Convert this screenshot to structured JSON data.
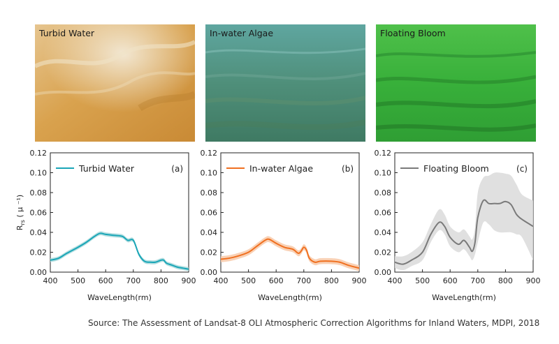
{
  "photos": [
    {
      "label": "Turbid Water"
    },
    {
      "label": "In-water Algae"
    },
    {
      "label": "Floating Bloom"
    }
  ],
  "source_text": "Source: The Assessment of Landsat-8 OLI Atmospheric Correction Algorithms for Inland Waters, MDPI, 2018",
  "colors": {
    "turbid": "#1aa6b7",
    "algae": "#f07020",
    "bloom": "#7a7a7a"
  },
  "chart_data": [
    {
      "type": "line",
      "panel_label": "(a)",
      "ylabel": "Rrs (μ⁻¹)",
      "ylabel_main": "R",
      "ylabel_sub": "rs",
      "ylabel_unit": " ( μ ⁻¹)",
      "xlabel": "WaveLength(rm)",
      "xlim": [
        400,
        900
      ],
      "ylim": [
        0,
        0.12
      ],
      "xticks": [
        "400",
        "500",
        "600",
        "700",
        "800",
        "900"
      ],
      "yticks": [
        "0.00",
        "0.02",
        "0.04",
        "0.06",
        "0.08",
        "0.10",
        "0.12"
      ],
      "legend_placement": "top-left",
      "series": [
        {
          "name": "Turbid Water",
          "color": "#1aa6b7",
          "band_color": "#a9d9dc",
          "x": [
            400,
            430,
            460,
            500,
            530,
            560,
            580,
            600,
            630,
            660,
            680,
            700,
            720,
            740,
            760,
            780,
            800,
            810,
            820,
            840,
            860,
            880,
            900
          ],
          "y": [
            0.012,
            0.014,
            0.019,
            0.025,
            0.03,
            0.036,
            0.039,
            0.038,
            0.037,
            0.036,
            0.032,
            0.032,
            0.018,
            0.011,
            0.01,
            0.01,
            0.012,
            0.012,
            0.009,
            0.007,
            0.005,
            0.004,
            0.003
          ],
          "band": 0.002
        }
      ]
    },
    {
      "type": "line",
      "panel_label": "(b)",
      "ylabel": "",
      "xlabel": "WaveLength(rm)",
      "xlim": [
        400,
        900
      ],
      "ylim": [
        0,
        0.12
      ],
      "xticks": [
        "400",
        "500",
        "600",
        "700",
        "800",
        "900"
      ],
      "yticks": [
        "0.00",
        "0.02",
        "0.04",
        "0.06",
        "0.08",
        "0.10",
        "0.12"
      ],
      "legend_placement": "top-left",
      "series": [
        {
          "name": "In-water Algae",
          "color": "#f07020",
          "band_color": "#f8c9a8",
          "x": [
            400,
            430,
            460,
            500,
            530,
            560,
            575,
            600,
            630,
            660,
            680,
            690,
            700,
            710,
            720,
            740,
            760,
            800,
            830,
            860,
            900
          ],
          "y": [
            0.013,
            0.014,
            0.016,
            0.02,
            0.026,
            0.032,
            0.033,
            0.029,
            0.025,
            0.023,
            0.019,
            0.021,
            0.025,
            0.022,
            0.014,
            0.01,
            0.011,
            0.011,
            0.01,
            0.007,
            0.004
          ],
          "band": 0.003
        }
      ]
    },
    {
      "type": "line",
      "panel_label": "(c)",
      "ylabel": "",
      "xlabel": "WaveLength(rm)",
      "xlim": [
        400,
        900
      ],
      "ylim": [
        0,
        0.12
      ],
      "xticks": [
        "400",
        "500",
        "600",
        "700",
        "800",
        "900"
      ],
      "yticks": [
        "0.00",
        "0.02",
        "0.04",
        "0.06",
        "0.08",
        "0.10",
        "0.12"
      ],
      "legend_placement": "top-left",
      "series": [
        {
          "name": "Floating Bloom",
          "color": "#7a7a7a",
          "band_color": "#dadada",
          "x": [
            400,
            430,
            460,
            500,
            530,
            560,
            580,
            600,
            630,
            650,
            670,
            680,
            690,
            700,
            720,
            740,
            760,
            780,
            800,
            820,
            840,
            860,
            900
          ],
          "y": [
            0.01,
            0.008,
            0.012,
            0.02,
            0.038,
            0.05,
            0.046,
            0.035,
            0.028,
            0.032,
            0.025,
            0.021,
            0.03,
            0.055,
            0.072,
            0.069,
            0.069,
            0.069,
            0.071,
            0.068,
            0.058,
            0.053,
            0.046
          ],
          "band_lower": [
            0.004,
            0.002,
            0.006,
            0.012,
            0.03,
            0.042,
            0.038,
            0.026,
            0.02,
            0.023,
            0.016,
            0.012,
            0.018,
            0.03,
            0.05,
            0.048,
            0.042,
            0.04,
            0.04,
            0.04,
            0.038,
            0.035,
            0.012
          ],
          "band_upper": [
            0.016,
            0.016,
            0.02,
            0.03,
            0.048,
            0.063,
            0.058,
            0.046,
            0.04,
            0.043,
            0.036,
            0.033,
            0.045,
            0.08,
            0.095,
            0.097,
            0.1,
            0.1,
            0.099,
            0.097,
            0.088,
            0.078,
            0.072
          ]
        }
      ]
    }
  ]
}
